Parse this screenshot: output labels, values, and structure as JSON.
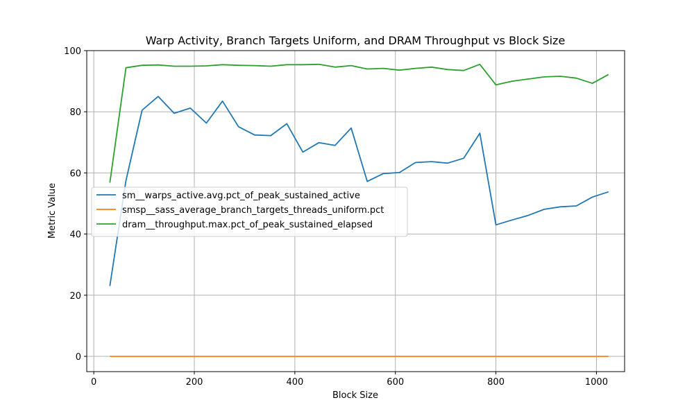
{
  "chart_data": {
    "type": "line",
    "title": "Warp Activity, Branch Targets Uniform, and DRAM Throughput vs Block Size",
    "xlabel": "Block Size",
    "ylabel": "Metric Value",
    "xlim": [
      -14,
      1056
    ],
    "ylim": [
      -5,
      100
    ],
    "xticks": [
      0,
      200,
      400,
      600,
      800,
      1000
    ],
    "yticks": [
      0,
      20,
      40,
      60,
      80,
      100
    ],
    "grid": true,
    "legend_position": "center-left",
    "x": [
      32,
      64,
      96,
      128,
      160,
      192,
      224,
      256,
      288,
      320,
      352,
      384,
      416,
      448,
      480,
      512,
      544,
      576,
      608,
      640,
      672,
      704,
      736,
      768,
      800,
      832,
      864,
      896,
      928,
      960,
      992,
      1024
    ],
    "series": [
      {
        "name": "sm__warps_active.avg.pct_of_peak_sustained_active",
        "color": "#1f77b4",
        "values": [
          23.0,
          57.5,
          80.5,
          85.0,
          79.5,
          81.2,
          76.3,
          83.5,
          75.1,
          72.4,
          72.2,
          76.1,
          66.8,
          69.9,
          69.0,
          74.7,
          57.2,
          59.8,
          60.1,
          63.4,
          63.7,
          63.2,
          64.8,
          73.0,
          43.0,
          44.6,
          46.1,
          48.1,
          48.9,
          49.2,
          52.1,
          53.8
        ]
      },
      {
        "name": "smsp__sass_average_branch_targets_threads_uniform.pct",
        "color": "#ff7f0e",
        "values": [
          0,
          0,
          0,
          0,
          0,
          0,
          0,
          0,
          0,
          0,
          0,
          0,
          0,
          0,
          0,
          0,
          0,
          0,
          0,
          0,
          0,
          0,
          0,
          0,
          0,
          0,
          0,
          0,
          0,
          0,
          0,
          0
        ]
      },
      {
        "name": "dram__throughput.max.pct_of_peak_sustained_elapsed",
        "color": "#2ca02c",
        "values": [
          56.8,
          94.4,
          95.2,
          95.3,
          94.9,
          94.9,
          95.0,
          95.4,
          95.2,
          95.1,
          94.9,
          95.4,
          95.4,
          95.5,
          94.6,
          95.1,
          94.0,
          94.2,
          93.6,
          94.2,
          94.6,
          93.8,
          93.5,
          95.5,
          88.8,
          90.0,
          90.7,
          91.4,
          91.6,
          91.0,
          89.3,
          92.2
        ]
      }
    ]
  }
}
